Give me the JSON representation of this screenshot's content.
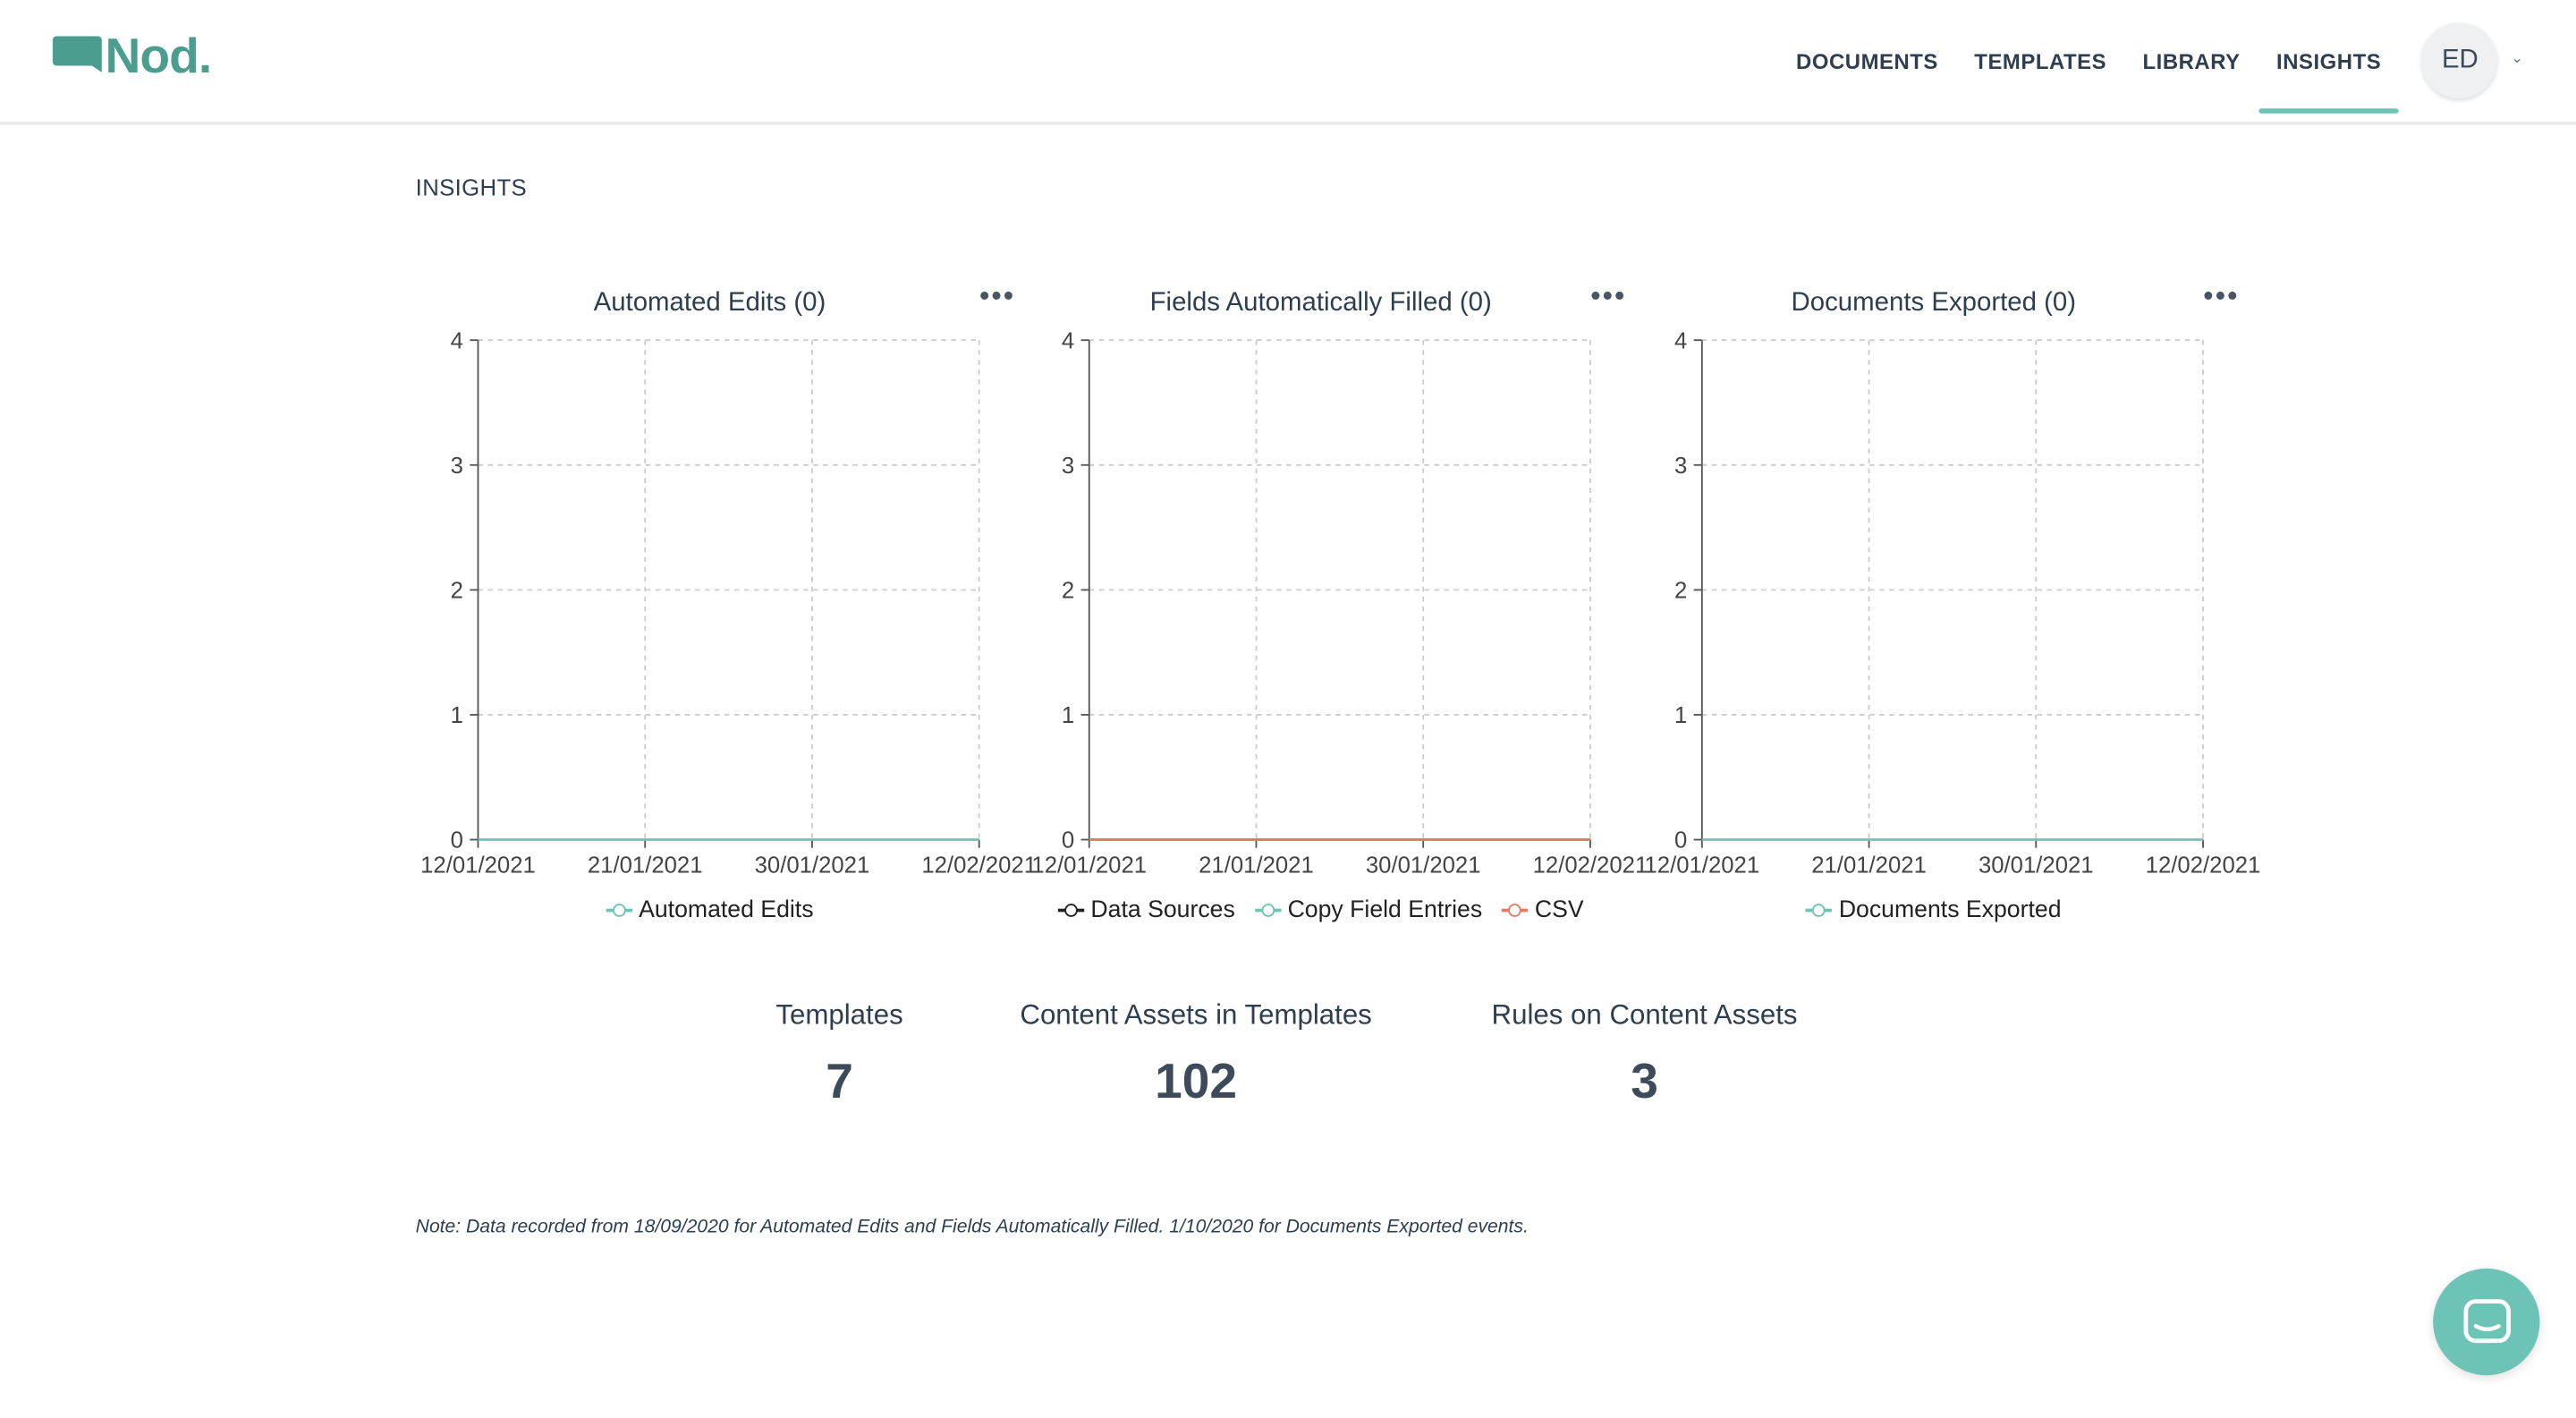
{
  "app": {
    "logo_text": "Nod."
  },
  "nav": {
    "items": [
      {
        "label": "DOCUMENTS",
        "active": false
      },
      {
        "label": "TEMPLATES",
        "active": false
      },
      {
        "label": "LIBRARY",
        "active": false
      },
      {
        "label": "INSIGHTS",
        "active": true
      }
    ],
    "user_initials": "ED"
  },
  "page": {
    "title": "INSIGHTS"
  },
  "chart_data": [
    {
      "type": "line",
      "title": "Automated Edits (0)",
      "categories": [
        "12/01/2021",
        "21/01/2021",
        "30/01/2021",
        "12/02/2021"
      ],
      "ylim": [
        0,
        4
      ],
      "yticks": [
        "0",
        "1",
        "2",
        "3",
        "4"
      ],
      "grid": true,
      "legend_position": "bottom",
      "series": [
        {
          "name": "Automated Edits",
          "color": "#6cc3b6",
          "values": [
            0,
            0,
            0,
            0
          ]
        }
      ]
    },
    {
      "type": "line",
      "title": "Fields Automatically Filled (0)",
      "categories": [
        "12/01/2021",
        "21/01/2021",
        "30/01/2021",
        "12/02/2021"
      ],
      "ylim": [
        0,
        4
      ],
      "yticks": [
        "0",
        "1",
        "2",
        "3",
        "4"
      ],
      "grid": true,
      "legend_position": "bottom",
      "series": [
        {
          "name": "Data Sources",
          "color": "#222222",
          "values": [
            0,
            0,
            0,
            0
          ]
        },
        {
          "name": "Copy Field Entries",
          "color": "#6cc3b6",
          "values": [
            0,
            0,
            0,
            0
          ]
        },
        {
          "name": "CSV",
          "color": "#e87a63",
          "values": [
            0,
            0,
            0,
            0
          ]
        }
      ]
    },
    {
      "type": "line",
      "title": "Documents Exported (0)",
      "categories": [
        "12/01/2021",
        "21/01/2021",
        "30/01/2021",
        "12/02/2021"
      ],
      "ylim": [
        0,
        4
      ],
      "yticks": [
        "0",
        "1",
        "2",
        "3",
        "4"
      ],
      "grid": true,
      "legend_position": "bottom",
      "series": [
        {
          "name": "Documents Exported",
          "color": "#6cc3b6",
          "values": [
            0,
            0,
            0,
            0
          ]
        }
      ]
    }
  ],
  "stats": [
    {
      "label": "Templates",
      "value": "7"
    },
    {
      "label": "Content Assets in Templates",
      "value": "102"
    },
    {
      "label": "Rules on Content Assets",
      "value": "3"
    }
  ],
  "note": "Note: Data recorded from 18/09/2020 for Automated Edits and Fields Automatically Filled. 1/10/2020 for Documents Exported events.",
  "chat": {
    "icon": "chat-bubble-icon"
  },
  "colors": {
    "accent": "#6cc3b6",
    "brand": "#4a9d8f",
    "text": "#2d3e50"
  }
}
